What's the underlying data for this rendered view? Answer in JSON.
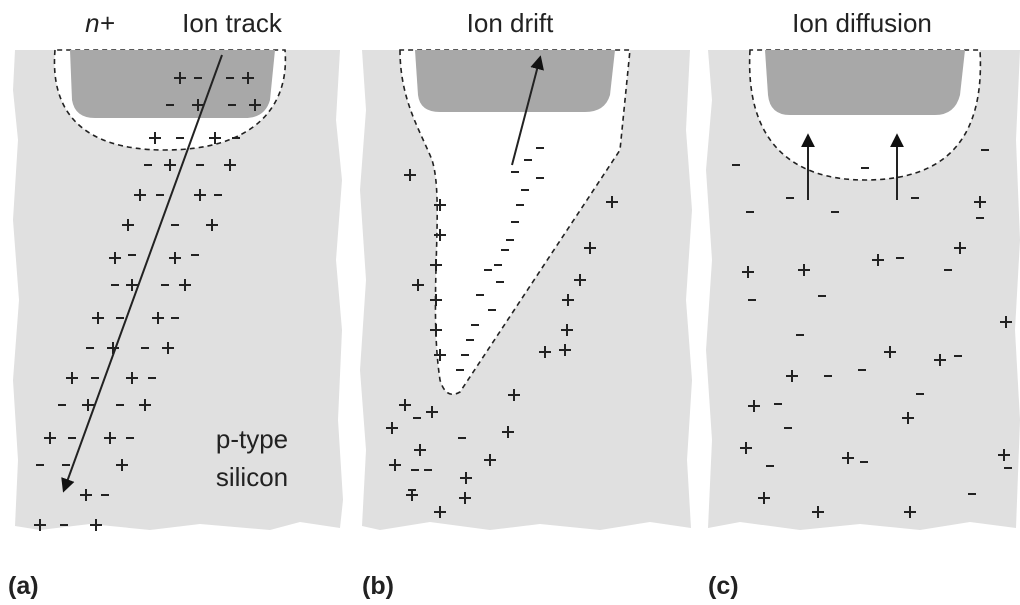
{
  "labels": {
    "n_plus": "n+",
    "ion_track": "Ion track",
    "ion_drift": "Ion drift",
    "ion_diffusion": "Ion diffusion",
    "p_type": "p-type",
    "silicon": "silicon"
  },
  "panels": [
    "(a)",
    "(b)",
    "(c)"
  ]
}
